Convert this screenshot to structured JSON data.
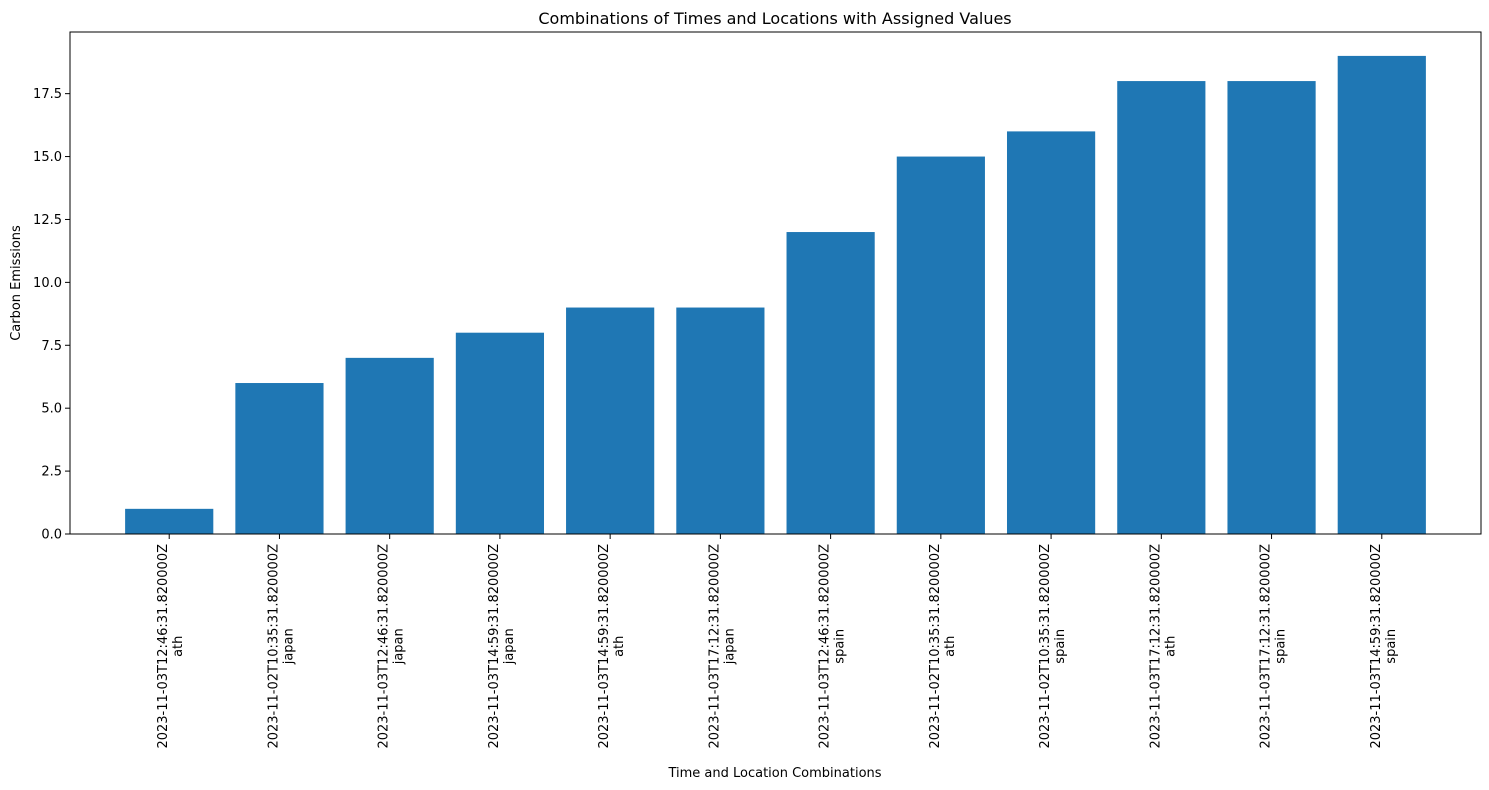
{
  "chart_data": {
    "type": "bar",
    "title": "Combinations of Times and Locations with Assigned Values",
    "xlabel": "Time and Location Combinations",
    "ylabel": "Carbon Emissions",
    "categories": [
      {
        "time": "2023-11-03T12:46:31.820000Z",
        "location": "ath"
      },
      {
        "time": "2023-11-02T10:35:31.820000Z",
        "location": "japan"
      },
      {
        "time": "2023-11-03T12:46:31.820000Z",
        "location": "japan"
      },
      {
        "time": "2023-11-03T14:59:31.820000Z",
        "location": "japan"
      },
      {
        "time": "2023-11-03T14:59:31.820000Z",
        "location": "ath"
      },
      {
        "time": "2023-11-03T17:12:31.820000Z",
        "location": "japan"
      },
      {
        "time": "2023-11-03T12:46:31.820000Z",
        "location": "spain"
      },
      {
        "time": "2023-11-02T10:35:31.820000Z",
        "location": "ath"
      },
      {
        "time": "2023-11-02T10:35:31.820000Z",
        "location": "spain"
      },
      {
        "time": "2023-11-03T17:12:31.820000Z",
        "location": "ath"
      },
      {
        "time": "2023-11-03T17:12:31.820000Z",
        "location": "spain"
      },
      {
        "time": "2023-11-03T14:59:31.820000Z",
        "location": "spain"
      }
    ],
    "values": [
      1,
      6,
      7,
      8,
      9,
      9,
      12,
      15,
      16,
      18,
      18,
      19
    ],
    "ylim": [
      0,
      19.95
    ],
    "yticks": [
      "0.0",
      "2.5",
      "5.0",
      "7.5",
      "10.0",
      "12.5",
      "15.0",
      "17.5"
    ],
    "bar_color": "#1f77b4",
    "grid": false,
    "legend": "none"
  }
}
